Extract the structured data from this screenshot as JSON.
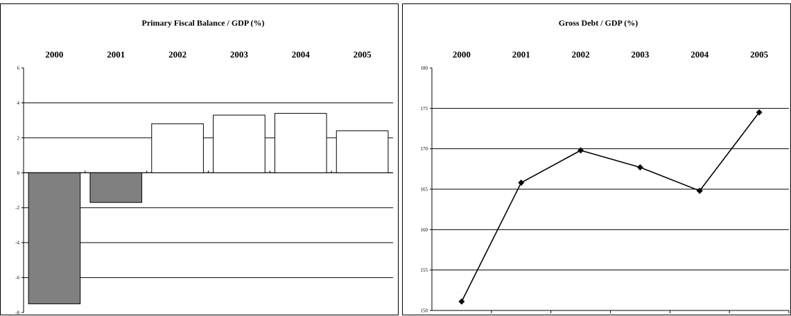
{
  "chart_data": [
    {
      "type": "bar",
      "title": "Primary Fiscal Balance / GDP (%)",
      "categories": [
        "2000",
        "2001",
        "2002",
        "2003",
        "2004",
        "2005"
      ],
      "values": [
        -7.5,
        -1.7,
        2.8,
        3.3,
        3.4,
        2.4
      ],
      "ylim": [
        -8,
        6
      ],
      "yticks": [
        -8,
        -6,
        -4,
        -2,
        0,
        2,
        4,
        6
      ],
      "xlabel": "",
      "ylabel": "",
      "grid": true,
      "colors": {
        "negative": "#808080",
        "positive": "#ffffff",
        "gridline": "#000000"
      }
    },
    {
      "type": "line",
      "title": "Gross Debt / GDP (%)",
      "categories": [
        "2000",
        "2001",
        "2002",
        "2003",
        "2004",
        "2005"
      ],
      "values": [
        151.1,
        165.8,
        169.8,
        167.7,
        164.8,
        174.5
      ],
      "ylim": [
        150,
        180
      ],
      "yticks": [
        150,
        155,
        160,
        165,
        170,
        175,
        180
      ],
      "xlabel": "",
      "ylabel": "",
      "grid": true,
      "colors": {
        "line": "#000000",
        "marker": "#000000",
        "gridline": "#000000"
      }
    }
  ]
}
